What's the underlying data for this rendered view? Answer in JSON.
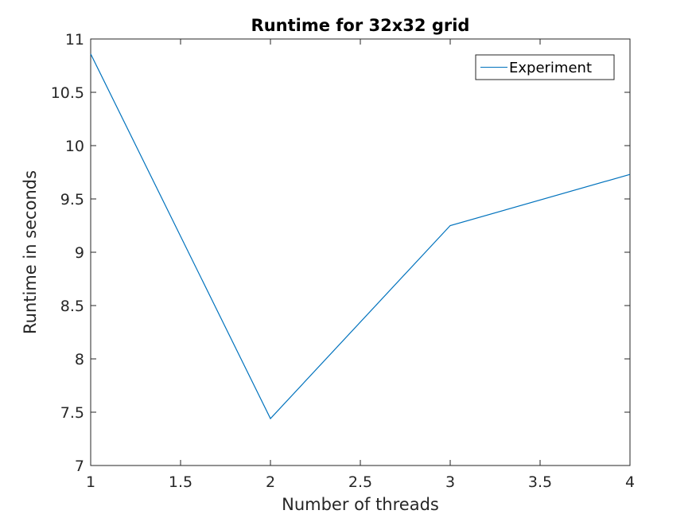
{
  "chart_data": {
    "type": "line",
    "title": "Runtime for 32x32 grid",
    "xlabel": "Number of threads",
    "ylabel": "Runtime in seconds",
    "xlim": [
      1,
      4
    ],
    "ylim": [
      7,
      11
    ],
    "xticks": [
      1,
      1.5,
      2,
      2.5,
      3,
      3.5,
      4
    ],
    "xtick_labels": [
      "1",
      "1.5",
      "2",
      "2.5",
      "3",
      "3.5",
      "4"
    ],
    "yticks": [
      7,
      7.5,
      8,
      8.5,
      9,
      9.5,
      10,
      10.5,
      11
    ],
    "ytick_labels": [
      "7",
      "7.5",
      "8",
      "8.5",
      "9",
      "9.5",
      "10",
      "10.5",
      "11"
    ],
    "grid": false,
    "legend_position": "top-right",
    "series": [
      {
        "name": "Experiment",
        "color": "#0072bd",
        "x": [
          1,
          2,
          3,
          4
        ],
        "y": [
          10.86,
          7.44,
          9.25,
          9.73
        ]
      }
    ]
  }
}
